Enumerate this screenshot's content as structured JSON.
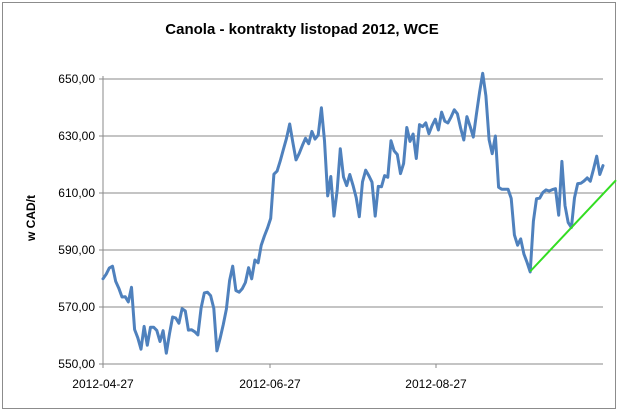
{
  "chart_data": {
    "type": "line",
    "title": "Canola - kontrakty listopad 2012, WCE",
    "xlabel": "",
    "ylabel": "w CAD/t",
    "ylim": [
      550,
      650
    ],
    "yticks": [
      "650,00",
      "630,00",
      "610,00",
      "590,00",
      "570,00",
      "550,00"
    ],
    "ytick_values": [
      650,
      630,
      610,
      590,
      570,
      550
    ],
    "xticks": [
      "2012-04-27",
      "2012-06-27",
      "2012-08-27"
    ],
    "grid": "horizontal",
    "legend": "none",
    "series": [
      {
        "color": "#4f81bd",
        "values": [
          579.9,
          581.5,
          583.7,
          584.3,
          579.0,
          576.6,
          573.5,
          573.6,
          571.8,
          576.9,
          562.1,
          559.2,
          555.2,
          563.2,
          556.6,
          562.9,
          562.9,
          561.8,
          557.9,
          561.7,
          553.8,
          560.6,
          566.5,
          566.1,
          564.3,
          569.4,
          568.6,
          561.9,
          562.0,
          561.3,
          560.2,
          569.6,
          574.9,
          575.2,
          574.0,
          569.5,
          554.6,
          559.0,
          563.9,
          569.3,
          579.3,
          584.3,
          575.8,
          575.2,
          576.4,
          578.6,
          583.8,
          579.9,
          586.5,
          585.5,
          591.6,
          594.9,
          597.8,
          601.1,
          616.6,
          617.7,
          621.2,
          625.3,
          629.2,
          634.2,
          627.6,
          621.6,
          623.9,
          626.7,
          629.2,
          627.3,
          631.6,
          628.9,
          630.3,
          639.9,
          628.3,
          609.0,
          615.8,
          601.9,
          611.1,
          625.5,
          615.6,
          612.6,
          616.5,
          612.7,
          608.4,
          601.7,
          613.9,
          618.0,
          616.1,
          613.8,
          601.9,
          612.3,
          612.2,
          616.1,
          615.5,
          628.3,
          624.8,
          623.5,
          616.8,
          620.3,
          633.0,
          628.1,
          630.7,
          622.1,
          634.0,
          633.3,
          634.6,
          630.8,
          633.7,
          635.9,
          632.1,
          638.4,
          635.2,
          634.6,
          636.7,
          639.2,
          637.8,
          632.8,
          628.6,
          636.8,
          633.4,
          629.6,
          637.6,
          645.4,
          652.0,
          644.1,
          628.7,
          623.8,
          630.0,
          612.0,
          611.3,
          611.3,
          611.3,
          608.1,
          595.3,
          591.7,
          593.9,
          588.6,
          585.6,
          582.3,
          600.1,
          608.0,
          608.2,
          610.2,
          611.1,
          610.7,
          611.2,
          611.5,
          602.2,
          621.1,
          605.6,
          599.6,
          597.9,
          608.3,
          613.3,
          613.4,
          614.2,
          615.3,
          614.1,
          618.3,
          622.9,
          616.5,
          619.6
        ]
      }
    ],
    "annotations": [
      {
        "type": "trend-line",
        "color": "#33dd22",
        "from_index": 135,
        "start_value": 582.5,
        "end_value": 614.5
      }
    ]
  }
}
